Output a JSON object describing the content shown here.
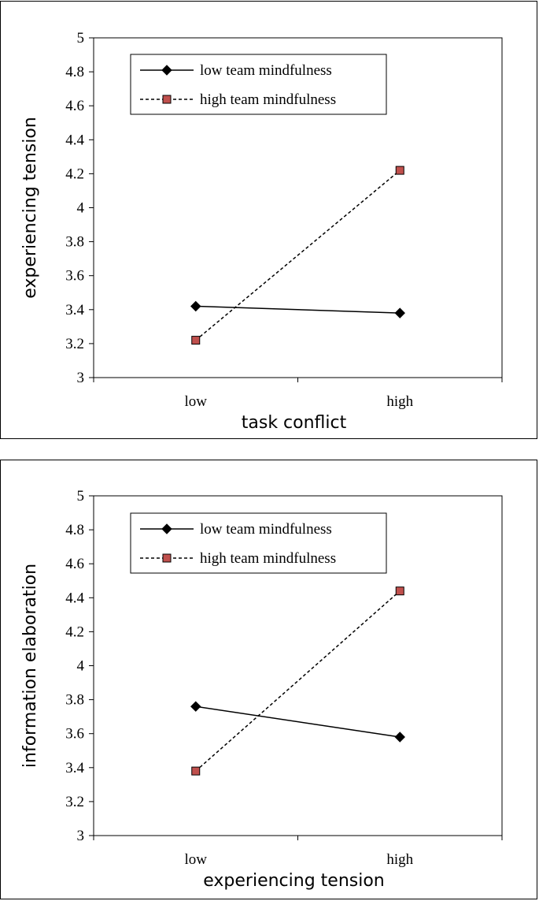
{
  "chart_data": [
    {
      "type": "line",
      "categories": [
        "low",
        "high"
      ],
      "xlabel": "task conflict",
      "ylabel": "experiencing tension",
      "ylim": [
        3,
        5
      ],
      "yticks": [
        "3",
        "3.2",
        "3.4",
        "3.6",
        "3.8",
        "4",
        "4.2",
        "4.4",
        "4.6",
        "4.8",
        "5"
      ],
      "grid": false,
      "legend": "top-left",
      "series": [
        {
          "name": "low team mindfulness",
          "values": [
            3.42,
            3.38
          ],
          "style": "solid",
          "marker": "diamond",
          "color": "#000000"
        },
        {
          "name": "high team mindfulness",
          "values": [
            3.22,
            4.22
          ],
          "style": "dashed",
          "marker": "square",
          "color": "#c0504d"
        }
      ]
    },
    {
      "type": "line",
      "categories": [
        "low",
        "high"
      ],
      "xlabel": "experiencing tension",
      "ylabel": "information elaboration",
      "ylim": [
        3,
        5
      ],
      "yticks": [
        "3",
        "3.2",
        "3.4",
        "3.6",
        "3.8",
        "4",
        "4.2",
        "4.4",
        "4.6",
        "4.8",
        "5"
      ],
      "grid": false,
      "legend": "top-left",
      "series": [
        {
          "name": "low team mindfulness",
          "values": [
            3.76,
            3.58
          ],
          "style": "solid",
          "marker": "diamond",
          "color": "#000000"
        },
        {
          "name": "high team mindfulness",
          "values": [
            3.38,
            4.44
          ],
          "style": "dashed",
          "marker": "square",
          "color": "#c0504d"
        }
      ]
    }
  ]
}
